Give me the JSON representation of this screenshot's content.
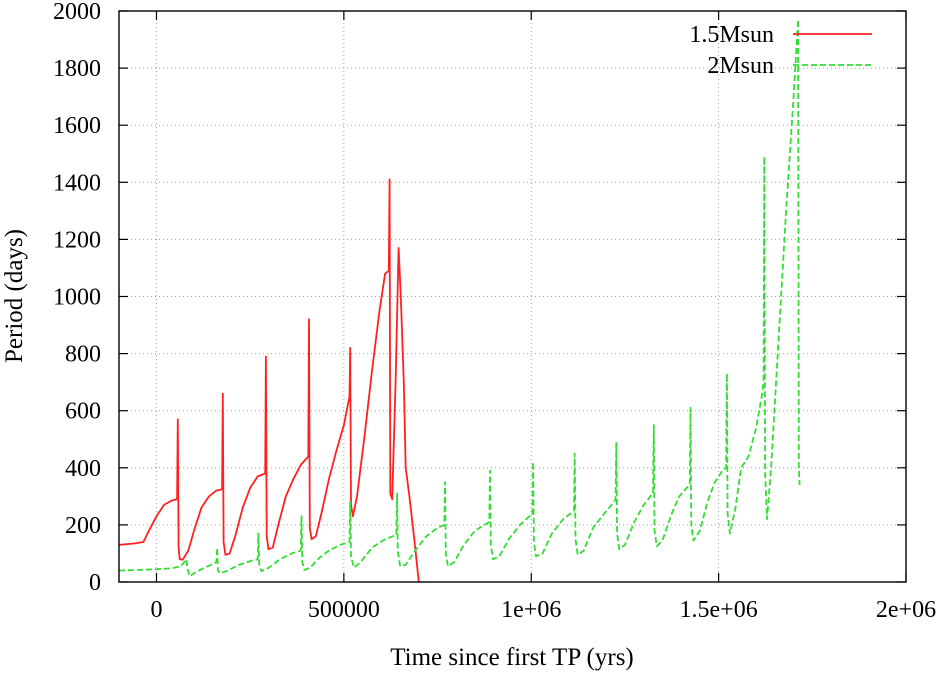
{
  "chart_data": {
    "type": "line",
    "title": "",
    "xlabel": "Time since first TP (yrs)",
    "ylabel": "Period (days)",
    "xlim": [
      -100000,
      2000000
    ],
    "ylim": [
      0,
      2000
    ],
    "grid": true,
    "legend_position": "top-right",
    "x_ticks": [
      {
        "value": 0,
        "label": "0"
      },
      {
        "value": 500000,
        "label": "500000"
      },
      {
        "value": 1000000,
        "label": "1e+06"
      },
      {
        "value": 1500000,
        "label": "1.5e+06"
      },
      {
        "value": 2000000,
        "label": "2e+06"
      }
    ],
    "y_ticks": [
      {
        "value": 0,
        "label": "0"
      },
      {
        "value": 200,
        "label": "200"
      },
      {
        "value": 400,
        "label": "400"
      },
      {
        "value": 600,
        "label": "600"
      },
      {
        "value": 800,
        "label": "800"
      },
      {
        "value": 1000,
        "label": "1000"
      },
      {
        "value": 1200,
        "label": "1200"
      },
      {
        "value": 1400,
        "label": "1400"
      },
      {
        "value": 1600,
        "label": "1600"
      },
      {
        "value": 1800,
        "label": "1800"
      },
      {
        "value": 2000,
        "label": "2000"
      }
    ],
    "series": [
      {
        "name": "1.5Msun",
        "color": "#ff2020",
        "dash": "solid",
        "points": [
          [
            -100000,
            130
          ],
          [
            -60000,
            135
          ],
          [
            -35000,
            140
          ],
          [
            -20000,
            180
          ],
          [
            0,
            230
          ],
          [
            20000,
            270
          ],
          [
            40000,
            285
          ],
          [
            55000,
            290
          ],
          [
            57000,
            570
          ],
          [
            59000,
            120
          ],
          [
            62000,
            80
          ],
          [
            70000,
            78
          ],
          [
            85000,
            110
          ],
          [
            100000,
            180
          ],
          [
            120000,
            260
          ],
          [
            140000,
            300
          ],
          [
            160000,
            320
          ],
          [
            175000,
            325
          ],
          [
            177000,
            660
          ],
          [
            179000,
            140
          ],
          [
            184000,
            95
          ],
          [
            195000,
            100
          ],
          [
            210000,
            160
          ],
          [
            230000,
            260
          ],
          [
            250000,
            330
          ],
          [
            270000,
            370
          ],
          [
            290000,
            380
          ],
          [
            292000,
            790
          ],
          [
            294000,
            160
          ],
          [
            299000,
            115
          ],
          [
            310000,
            120
          ],
          [
            325000,
            200
          ],
          [
            345000,
            300
          ],
          [
            365000,
            360
          ],
          [
            385000,
            410
          ],
          [
            405000,
            440
          ],
          [
            407000,
            920
          ],
          [
            409000,
            190
          ],
          [
            414000,
            150
          ],
          [
            425000,
            160
          ],
          [
            440000,
            240
          ],
          [
            460000,
            360
          ],
          [
            480000,
            460
          ],
          [
            500000,
            550
          ],
          [
            515000,
            650
          ],
          [
            517000,
            820
          ],
          [
            519000,
            270
          ],
          [
            524000,
            230
          ],
          [
            535000,
            300
          ],
          [
            555000,
            510
          ],
          [
            575000,
            740
          ],
          [
            595000,
            950
          ],
          [
            610000,
            1080
          ],
          [
            620000,
            1090
          ],
          [
            622000,
            1410
          ],
          [
            624000,
            310
          ],
          [
            629000,
            290
          ],
          [
            638000,
            700
          ],
          [
            646000,
            1170
          ],
          [
            652000,
            1000
          ],
          [
            660000,
            700
          ],
          [
            665000,
            400
          ],
          [
            675000,
            300
          ],
          [
            688000,
            150
          ],
          [
            700000,
            0
          ]
        ]
      },
      {
        "name": "2Msun",
        "color": "#33dd33",
        "dash": "dashed",
        "points": [
          [
            -100000,
            40
          ],
          [
            -50000,
            42
          ],
          [
            0,
            45
          ],
          [
            40000,
            48
          ],
          [
            65000,
            55
          ],
          [
            80000,
            80
          ],
          [
            82000,
            50
          ],
          [
            88000,
            20
          ],
          [
            100000,
            30
          ],
          [
            120000,
            45
          ],
          [
            145000,
            60
          ],
          [
            160000,
            70
          ],
          [
            162000,
            120
          ],
          [
            164000,
            40
          ],
          [
            170000,
            30
          ],
          [
            190000,
            40
          ],
          [
            220000,
            60
          ],
          [
            255000,
            75
          ],
          [
            270000,
            80
          ],
          [
            272000,
            170
          ],
          [
            274000,
            60
          ],
          [
            280000,
            38
          ],
          [
            300000,
            50
          ],
          [
            330000,
            80
          ],
          [
            360000,
            100
          ],
          [
            385000,
            110
          ],
          [
            387000,
            230
          ],
          [
            389000,
            70
          ],
          [
            395000,
            42
          ],
          [
            410000,
            50
          ],
          [
            435000,
            85
          ],
          [
            460000,
            110
          ],
          [
            490000,
            130
          ],
          [
            515000,
            140
          ],
          [
            517000,
            280
          ],
          [
            519000,
            90
          ],
          [
            527000,
            50
          ],
          [
            545000,
            70
          ],
          [
            575000,
            120
          ],
          [
            610000,
            150
          ],
          [
            640000,
            165
          ],
          [
            642000,
            310
          ],
          [
            644000,
            110
          ],
          [
            650000,
            55
          ],
          [
            665000,
            60
          ],
          [
            690000,
            110
          ],
          [
            720000,
            160
          ],
          [
            750000,
            190
          ],
          [
            768000,
            200
          ],
          [
            770000,
            350
          ],
          [
            772000,
            100
          ],
          [
            778000,
            55
          ],
          [
            795000,
            70
          ],
          [
            820000,
            130
          ],
          [
            850000,
            180
          ],
          [
            875000,
            200
          ],
          [
            888000,
            210
          ],
          [
            890000,
            390
          ],
          [
            892000,
            130
          ],
          [
            898000,
            80
          ],
          [
            915000,
            90
          ],
          [
            940000,
            150
          ],
          [
            970000,
            200
          ],
          [
            995000,
            230
          ],
          [
            1003000,
            235
          ],
          [
            1005000,
            420
          ],
          [
            1007000,
            140
          ],
          [
            1013000,
            90
          ],
          [
            1030000,
            100
          ],
          [
            1055000,
            170
          ],
          [
            1085000,
            220
          ],
          [
            1110000,
            245
          ],
          [
            1114000,
            250
          ],
          [
            1116000,
            450
          ],
          [
            1118000,
            150
          ],
          [
            1124000,
            95
          ],
          [
            1140000,
            110
          ],
          [
            1165000,
            190
          ],
          [
            1195000,
            240
          ],
          [
            1220000,
            280
          ],
          [
            1225000,
            290
          ],
          [
            1227000,
            490
          ],
          [
            1229000,
            170
          ],
          [
            1235000,
            115
          ],
          [
            1250000,
            130
          ],
          [
            1275000,
            210
          ],
          [
            1300000,
            270
          ],
          [
            1318000,
            300
          ],
          [
            1325000,
            310
          ],
          [
            1327000,
            550
          ],
          [
            1329000,
            180
          ],
          [
            1335000,
            125
          ],
          [
            1350000,
            145
          ],
          [
            1375000,
            240
          ],
          [
            1395000,
            300
          ],
          [
            1415000,
            330
          ],
          [
            1423000,
            340
          ],
          [
            1425000,
            610
          ],
          [
            1427000,
            200
          ],
          [
            1433000,
            145
          ],
          [
            1450000,
            180
          ],
          [
            1470000,
            280
          ],
          [
            1490000,
            350
          ],
          [
            1510000,
            390
          ],
          [
            1520000,
            400
          ],
          [
            1522000,
            730
          ],
          [
            1524000,
            240
          ],
          [
            1530000,
            170
          ],
          [
            1545000,
            260
          ],
          [
            1560000,
            400
          ],
          [
            1580000,
            440
          ],
          [
            1600000,
            540
          ],
          [
            1615000,
            650
          ],
          [
            1620000,
            700
          ],
          [
            1622000,
            1490
          ],
          [
            1624000,
            380
          ],
          [
            1629000,
            220
          ],
          [
            1640000,
            400
          ],
          [
            1660000,
            850
          ],
          [
            1680000,
            1300
          ],
          [
            1700000,
            1700
          ],
          [
            1712000,
            1970
          ],
          [
            1714000,
            400
          ],
          [
            1716000,
            340
          ]
        ]
      }
    ]
  }
}
